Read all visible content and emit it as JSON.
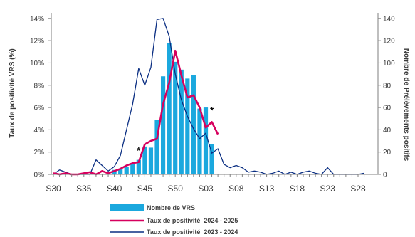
{
  "chart_data": {
    "type": "bar+line",
    "categories": [
      "S30",
      "S31",
      "S32",
      "S33",
      "S34",
      "S35",
      "S36",
      "S37",
      "S38",
      "S39",
      "S40",
      "S41",
      "S42",
      "S43",
      "S44",
      "S45",
      "S46",
      "S47",
      "S48",
      "S49",
      "S50",
      "S51",
      "S52",
      "S01",
      "S02",
      "S03",
      "S04",
      "S05",
      "S06",
      "S07",
      "S08",
      "S09",
      "S10",
      "S11",
      "S12",
      "S13",
      "S14",
      "S15",
      "S16",
      "S17",
      "S18",
      "S19",
      "S20",
      "S21",
      "S22",
      "S23",
      "S24",
      "S25",
      "S26",
      "S27",
      "S28",
      "S29"
    ],
    "x_tick_labels": [
      "S30",
      "S35",
      "S40",
      "S45",
      "S50",
      "S03",
      "S08",
      "S13",
      "S18",
      "S23",
      "S28"
    ],
    "y_left": {
      "label": "Taux de positivité VRS (%)",
      "ticks": [
        "0%",
        "2%",
        "4%",
        "6%",
        "8%",
        "10%",
        "12%",
        "14%"
      ],
      "ylim": [
        0,
        14.5
      ]
    },
    "y_right": {
      "label": "Nombre de Prélèvements positifs",
      "ticks": [
        "0",
        "20",
        "40",
        "60",
        "80",
        "100",
        "120",
        "140"
      ],
      "ylim": [
        0,
        145
      ]
    },
    "series": [
      {
        "name": "Nombre de VRS",
        "kind": "bar",
        "axis": "right",
        "color": "#1BA8DE",
        "values": [
          null,
          null,
          null,
          null,
          null,
          null,
          null,
          null,
          null,
          null,
          4,
          5,
          7,
          9,
          13,
          25,
          24,
          49,
          88,
          118,
          101,
          94,
          86,
          89,
          59,
          60,
          27,
          null,
          null,
          null,
          null,
          null,
          null,
          null,
          null,
          null,
          null,
          null,
          null,
          null,
          null,
          null,
          null,
          null,
          null,
          null,
          null,
          null,
          null,
          null,
          null,
          null
        ]
      },
      {
        "name": "Taux de positivité  2024 - 2025",
        "kind": "line",
        "axis": "left",
        "color": "#D6005E",
        "values": [
          0.1,
          0.0,
          0.1,
          0.0,
          0.0,
          0.1,
          0.2,
          0.0,
          0.3,
          0.1,
          0.3,
          0.5,
          0.8,
          1.0,
          1.1,
          2.7,
          3.0,
          3.2,
          6.3,
          8.2,
          11.1,
          8.9,
          6.9,
          7.1,
          6.0,
          4.2,
          4.7,
          3.6,
          null,
          null,
          null,
          null,
          null,
          null,
          null,
          null,
          null,
          null,
          null,
          null,
          null,
          null,
          null,
          null,
          null,
          null,
          null,
          null,
          null,
          null,
          null,
          null
        ]
      },
      {
        "name": "Taux de positivité  2023 - 2024",
        "kind": "line",
        "axis": "right",
        "color": "#0A2E82",
        "values": [
          0,
          4,
          2,
          0,
          0,
          0,
          0,
          13,
          8,
          3,
          7,
          17,
          40,
          63,
          95,
          80,
          96,
          139,
          140,
          124,
          90,
          67,
          52,
          41,
          32,
          37,
          19,
          23,
          9,
          6,
          8,
          6,
          2,
          3,
          2,
          0,
          1,
          3,
          0,
          2,
          0,
          2,
          3,
          1,
          0,
          6,
          0,
          0,
          0,
          0,
          0,
          1
        ]
      }
    ],
    "annotations": [
      {
        "text": "*",
        "category": "S44"
      },
      {
        "text": "*",
        "category": "S04"
      }
    ],
    "grid": false,
    "legend_position": "bottom"
  }
}
